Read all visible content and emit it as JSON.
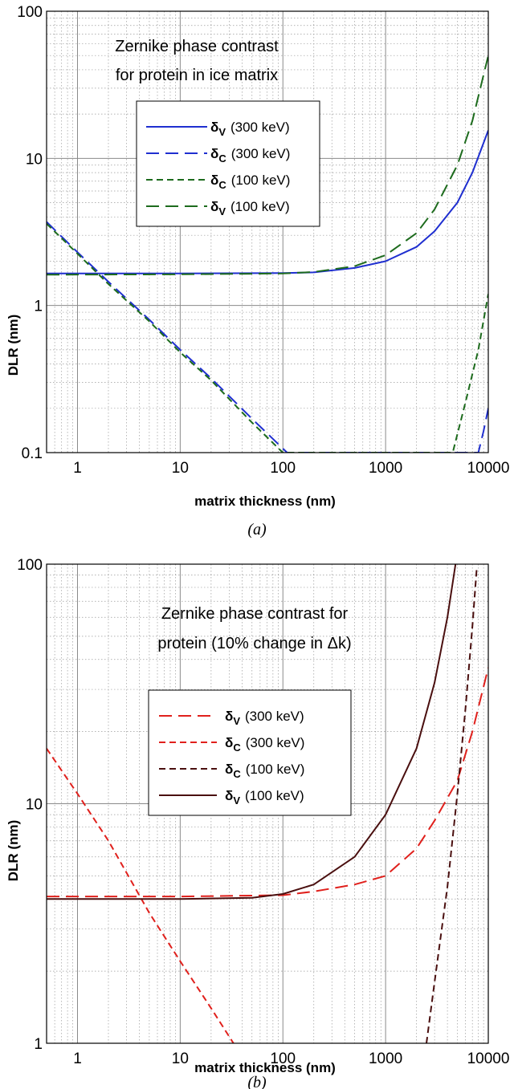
{
  "chart_data": [
    {
      "type": "line",
      "panel_label": "(a)",
      "annotation": [
        "Zernike phase contrast",
        "for protein in ice matrix"
      ],
      "xlabel": "matrix thickness (nm)",
      "ylabel": "DLR (nm)",
      "x_scale": "log",
      "y_scale": "log",
      "xlim": [
        0.5,
        10000
      ],
      "ylim": [
        0.1,
        100
      ],
      "x_ticks": [
        {
          "value": 1,
          "label": "1"
        },
        {
          "value": 10,
          "label": "10"
        },
        {
          "value": 100,
          "label": "100"
        },
        {
          "value": 1000,
          "label": "1000"
        },
        {
          "value": 10000,
          "label": "10000"
        }
      ],
      "y_ticks": [
        {
          "value": 0.1,
          "label": "0.1"
        },
        {
          "value": 1,
          "label": "1"
        },
        {
          "value": 10,
          "label": "10"
        },
        {
          "value": 100,
          "label": "100"
        }
      ],
      "grid": true,
      "legend_position": "upper-left",
      "series": [
        {
          "symbol": "δ",
          "sub": "V",
          "energy": "(300 keV)",
          "color": "#1f2fd0",
          "dash": "solid",
          "x": [
            0.5,
            10,
            100,
            200,
            500,
            1000,
            2000,
            3000,
            5000,
            7000,
            10000
          ],
          "y": [
            1.65,
            1.65,
            1.66,
            1.68,
            1.8,
            2.0,
            2.5,
            3.2,
            5.0,
            8.0,
            15.5
          ]
        },
        {
          "symbol": "δ",
          "sub": "C",
          "energy": "(300 keV)",
          "color": "#1f2fd0",
          "dash": "longdash",
          "x": [
            0.5,
            1,
            2,
            5,
            10,
            20,
            50,
            110,
            8000,
            9000,
            10000
          ],
          "y": [
            3.7,
            2.3,
            1.45,
            0.8,
            0.5,
            0.32,
            0.17,
            0.1,
            0.1,
            0.14,
            0.2
          ]
        },
        {
          "symbol": "δ",
          "sub": "C",
          "energy": "(100 keV)",
          "color": "#1d6b1d",
          "dash": "shortdash",
          "x": [
            0.5,
            1,
            2,
            5,
            10,
            20,
            50,
            100,
            4500,
            6000,
            8000,
            10000
          ],
          "y": [
            3.6,
            2.25,
            1.4,
            0.78,
            0.48,
            0.31,
            0.16,
            0.1,
            0.1,
            0.22,
            0.5,
            1.2
          ]
        },
        {
          "symbol": "δ",
          "sub": "V",
          "energy": "(100 keV)",
          "color": "#1d6b1d",
          "dash": "longdash",
          "x": [
            0.5,
            10,
            100,
            200,
            500,
            1000,
            2000,
            3000,
            5000,
            7000,
            10000
          ],
          "y": [
            1.62,
            1.63,
            1.65,
            1.69,
            1.85,
            2.2,
            3.1,
            4.5,
            9.0,
            18.0,
            50.0
          ]
        }
      ]
    },
    {
      "type": "line",
      "panel_label": "(b)",
      "annotation": [
        "Zernike phase contrast for",
        "protein (10% change in Δk)"
      ],
      "xlabel": "matrix thickness (nm)",
      "ylabel": "DLR (nm)",
      "x_scale": "log",
      "y_scale": "log",
      "xlim": [
        0.5,
        10000
      ],
      "ylim": [
        1,
        100
      ],
      "x_ticks": [
        {
          "value": 1,
          "label": "1"
        },
        {
          "value": 10,
          "label": "10"
        },
        {
          "value": 100,
          "label": "100"
        },
        {
          "value": 1000,
          "label": "1000"
        },
        {
          "value": 10000,
          "label": "10000"
        }
      ],
      "y_ticks": [
        {
          "value": 1,
          "label": "1"
        },
        {
          "value": 10,
          "label": "10"
        },
        {
          "value": 100,
          "label": "100"
        }
      ],
      "grid": true,
      "legend_position": "center-left",
      "series": [
        {
          "symbol": "δ",
          "sub": "V",
          "energy": "(300 keV)",
          "color": "#e0201c",
          "dash": "longdash",
          "x": [
            0.5,
            10,
            100,
            200,
            500,
            1000,
            2000,
            3000,
            5000,
            7000,
            10000
          ],
          "y": [
            4.1,
            4.1,
            4.15,
            4.3,
            4.6,
            5.0,
            6.5,
            8.5,
            12.5,
            20.0,
            37.0
          ]
        },
        {
          "symbol": "δ",
          "sub": "C",
          "energy": "(300 keV)",
          "color": "#e0201c",
          "dash": "shortdash",
          "x": [
            0.5,
            1,
            2,
            5,
            10,
            20,
            33
          ],
          "y": [
            17.0,
            11.0,
            7.0,
            3.5,
            2.2,
            1.4,
            1.0
          ]
        },
        {
          "symbol": "δ",
          "sub": "C",
          "energy": "(100 keV)",
          "color": "#4a0f0f",
          "dash": "shortdash",
          "x": [
            2500,
            3000,
            4000,
            5000,
            6000,
            7000,
            7700
          ],
          "y": [
            1.0,
            1.8,
            4.5,
            11.0,
            25.0,
            55.0,
            95.0
          ]
        },
        {
          "symbol": "δ",
          "sub": "V",
          "energy": "(100 keV)",
          "color": "#4a0f0f",
          "dash": "solid",
          "x": [
            0.5,
            10,
            50,
            100,
            200,
            500,
            1000,
            2000,
            3000,
            4000,
            4800
          ],
          "y": [
            4.0,
            4.0,
            4.05,
            4.2,
            4.6,
            6.0,
            9.0,
            17.0,
            32.0,
            60.0,
            100.0
          ]
        }
      ]
    }
  ]
}
